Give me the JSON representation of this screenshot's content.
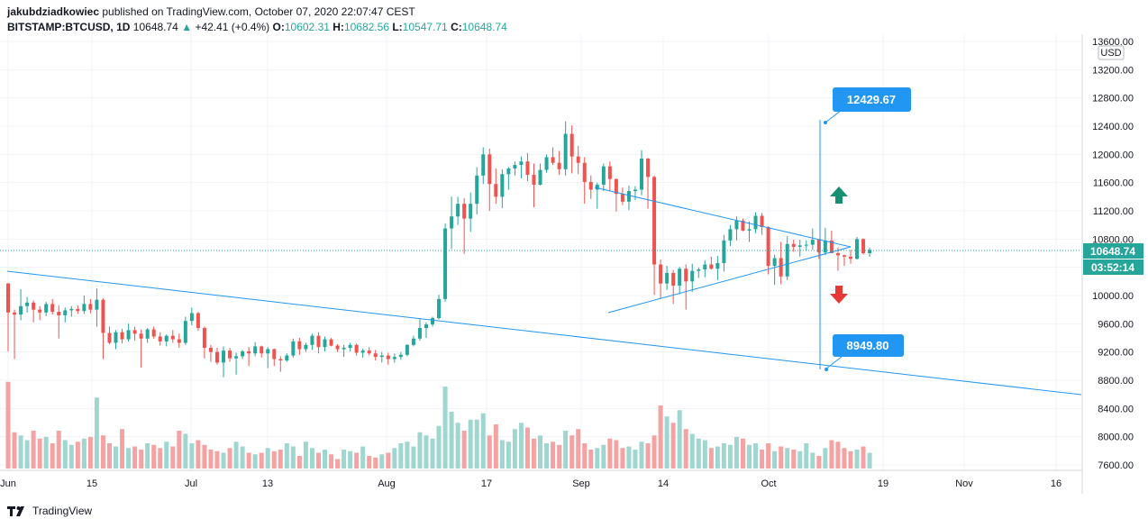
{
  "header": {
    "author": "jakubdziadkowiec",
    "published_text": "published on TradingView.com, October 07, 2020 22:07:47 CEST",
    "symbol": "BITSTAMP:BTCUSD, 1D",
    "last": "10648.74",
    "change_arrow": "▲",
    "change": "+42.41 (+0.4%)",
    "o_label": "O:",
    "o": "10602.31",
    "h_label": "H:",
    "h": "10682.56",
    "l_label": "L:",
    "l": "10547.71",
    "c_label": "C:",
    "c": "10648.74"
  },
  "footer": {
    "brand": "TradingView",
    "logo_icon": "tradingview-logo-icon"
  },
  "colors": {
    "up": "#26a69a",
    "down": "#ef5350",
    "vol_up": "#9fd6d0",
    "vol_down": "#f5a3a2",
    "line": "#2196f3",
    "grid": "#f0f3fa",
    "price_label": "#2196f3"
  },
  "chart_data": {
    "type": "candlestick",
    "y_axis": {
      "unit": "USD",
      "ticks": [
        "13600.00",
        "13200.00",
        "12800.00",
        "12400.00",
        "12000.00",
        "11600.00",
        "11200.00",
        "10800.00",
        "10400.00",
        "10000.00",
        "9600.00",
        "9200.00",
        "8800.00",
        "8400.00",
        "8000.00",
        "7600.00"
      ],
      "range": [
        7600,
        13600
      ]
    },
    "x_axis": {
      "ticks": [
        "Jun",
        "15",
        "Jul",
        "13",
        "Aug",
        "17",
        "Sep",
        "14",
        "Oct",
        "19",
        "Nov",
        "16"
      ]
    },
    "last_price_label": "10648.74",
    "countdown_label": "03:52:14",
    "targets": [
      {
        "label": "12429.67",
        "value": 12429.67
      },
      {
        "label": "8949.80",
        "value": 8949.8
      }
    ],
    "candles": [
      [
        10170,
        10180,
        9210,
        9760
      ],
      [
        9760,
        9800,
        9100,
        9730
      ],
      [
        9730,
        10090,
        9650,
        9850
      ],
      [
        9850,
        9980,
        9760,
        9900
      ],
      [
        9900,
        9930,
        9620,
        9800
      ],
      [
        9800,
        9850,
        9650,
        9760
      ],
      [
        9760,
        9910,
        9710,
        9880
      ],
      [
        9880,
        9950,
        9730,
        9770
      ],
      [
        9770,
        9860,
        9390,
        9720
      ],
      [
        9720,
        9830,
        9620,
        9790
      ],
      [
        9790,
        9850,
        9700,
        9810
      ],
      [
        9810,
        9860,
        9740,
        9780
      ],
      [
        9780,
        10000,
        9740,
        9880
      ],
      [
        9880,
        9950,
        9750,
        9800
      ],
      [
        9800,
        10100,
        9560,
        9940
      ],
      [
        9940,
        9960,
        9100,
        9470
      ],
      [
        9470,
        9560,
        9310,
        9330
      ],
      [
        9330,
        9510,
        9240,
        9480
      ],
      [
        9480,
        9530,
        9320,
        9380
      ],
      [
        9380,
        9600,
        9350,
        9510
      ],
      [
        9510,
        9560,
        9360,
        9460
      ],
      [
        9460,
        9520,
        8980,
        9390
      ],
      [
        9390,
        9540,
        9330,
        9520
      ],
      [
        9520,
        9560,
        9390,
        9420
      ],
      [
        9420,
        9480,
        9290,
        9350
      ],
      [
        9350,
        9450,
        9280,
        9430
      ],
      [
        9430,
        9510,
        9330,
        9380
      ],
      [
        9380,
        9460,
        9260,
        9330
      ],
      [
        9330,
        9700,
        9300,
        9640
      ],
      [
        9640,
        9830,
        9580,
        9750
      ],
      [
        9750,
        9770,
        9500,
        9540
      ],
      [
        9540,
        9560,
        9110,
        9260
      ],
      [
        9260,
        9300,
        9060,
        9200
      ],
      [
        9200,
        9260,
        9020,
        9050
      ],
      [
        9050,
        9280,
        8840,
        9220
      ],
      [
        9220,
        9260,
        9060,
        9110
      ],
      [
        9110,
        9190,
        8880,
        9140
      ],
      [
        9140,
        9230,
        9100,
        9210
      ],
      [
        9210,
        9270,
        9000,
        9180
      ],
      [
        9180,
        9340,
        9140,
        9280
      ],
      [
        9280,
        9290,
        9120,
        9180
      ],
      [
        9180,
        9270,
        8970,
        9240
      ],
      [
        9240,
        9250,
        9000,
        9100
      ],
      [
        9100,
        9140,
        8920,
        9080
      ],
      [
        9080,
        9180,
        9060,
        9150
      ],
      [
        9150,
        9390,
        9120,
        9350
      ],
      [
        9350,
        9400,
        9160,
        9240
      ],
      [
        9240,
        9330,
        9200,
        9300
      ],
      [
        9300,
        9460,
        9230,
        9430
      ],
      [
        9430,
        9480,
        9180,
        9270
      ],
      [
        9270,
        9420,
        9210,
        9380
      ],
      [
        9380,
        9400,
        9280,
        9290
      ],
      [
        9290,
        9310,
        9200,
        9240
      ],
      [
        9240,
        9300,
        9130,
        9260
      ],
      [
        9260,
        9330,
        9210,
        9300
      ],
      [
        9300,
        9320,
        9150,
        9190
      ],
      [
        9190,
        9250,
        9120,
        9220
      ],
      [
        9220,
        9270,
        9150,
        9180
      ],
      [
        9180,
        9230,
        9080,
        9130
      ],
      [
        9130,
        9200,
        9050,
        9150
      ],
      [
        9150,
        9190,
        9020,
        9100
      ],
      [
        9100,
        9180,
        9050,
        9130
      ],
      [
        9130,
        9200,
        9090,
        9160
      ],
      [
        9160,
        9310,
        9140,
        9300
      ],
      [
        9300,
        9430,
        9280,
        9390
      ],
      [
        9390,
        9680,
        9360,
        9540
      ],
      [
        9540,
        9620,
        9400,
        9590
      ],
      [
        9590,
        9700,
        9560,
        9680
      ],
      [
        9680,
        10010,
        9660,
        9950
      ],
      [
        9950,
        11020,
        9910,
        10950
      ],
      [
        10950,
        11400,
        10660,
        11120
      ],
      [
        11120,
        11400,
        11000,
        11300
      ],
      [
        11300,
        11380,
        10590,
        11090
      ],
      [
        11090,
        11460,
        10900,
        11300
      ],
      [
        11300,
        11820,
        11150,
        11700
      ],
      [
        11700,
        12100,
        11580,
        12000
      ],
      [
        12000,
        12080,
        11200,
        11580
      ],
      [
        11580,
        11800,
        11300,
        11400
      ],
      [
        11400,
        11790,
        11240,
        11720
      ],
      [
        11720,
        11820,
        11500,
        11800
      ],
      [
        11800,
        11900,
        11700,
        11850
      ],
      [
        11850,
        11970,
        11660,
        11900
      ],
      [
        11900,
        12020,
        11620,
        11710
      ],
      [
        11710,
        11870,
        11250,
        11570
      ],
      [
        11570,
        11870,
        11560,
        11780
      ],
      [
        11780,
        12000,
        11740,
        11960
      ],
      [
        11960,
        12100,
        11850,
        11880
      ],
      [
        11880,
        12050,
        11710,
        11790
      ],
      [
        11790,
        12470,
        11700,
        12290
      ],
      [
        12290,
        12410,
        11730,
        11970
      ],
      [
        11970,
        12120,
        11720,
        11880
      ],
      [
        11880,
        11960,
        11300,
        11610
      ],
      [
        11610,
        11700,
        11370,
        11500
      ],
      [
        11500,
        11600,
        11230,
        11570
      ],
      [
        11570,
        11870,
        11480,
        11830
      ],
      [
        11830,
        11900,
        11480,
        11650
      ],
      [
        11650,
        11660,
        11190,
        11440
      ],
      [
        11440,
        11530,
        11280,
        11330
      ],
      [
        11330,
        11560,
        11210,
        11480
      ],
      [
        11480,
        11550,
        11350,
        11500
      ],
      [
        11500,
        12060,
        11420,
        11940
      ],
      [
        11940,
        11950,
        11230,
        11680
      ],
      [
        11680,
        11700,
        10010,
        10440
      ],
      [
        10440,
        10510,
        9960,
        10170
      ],
      [
        10170,
        10420,
        10080,
        10320
      ],
      [
        10320,
        10360,
        9880,
        10140
      ],
      [
        10140,
        10410,
        10020,
        10380
      ],
      [
        10380,
        10440,
        9800,
        10200
      ],
      [
        10200,
        10450,
        10050,
        10350
      ],
      [
        10350,
        10400,
        10250,
        10370
      ],
      [
        10370,
        10500,
        10260,
        10440
      ],
      [
        10440,
        10550,
        10370,
        10380
      ],
      [
        10380,
        10560,
        10220,
        10460
      ],
      [
        10460,
        10860,
        10340,
        10780
      ],
      [
        10780,
        11000,
        10700,
        10940
      ],
      [
        10940,
        11120,
        10780,
        11060
      ],
      [
        11060,
        11090,
        10910,
        10920
      ],
      [
        10920,
        11050,
        10760,
        10940
      ],
      [
        10940,
        11180,
        10880,
        11130
      ],
      [
        11130,
        11170,
        10860,
        10970
      ],
      [
        10970,
        10980,
        10300,
        10420
      ],
      [
        10420,
        10580,
        10150,
        10530
      ],
      [
        10530,
        10760,
        10160,
        10270
      ],
      [
        10270,
        10840,
        10220,
        10730
      ],
      [
        10730,
        10790,
        10620,
        10690
      ],
      [
        10690,
        10790,
        10550,
        10710
      ],
      [
        10710,
        10780,
        10630,
        10720
      ],
      [
        10720,
        10950,
        10650,
        10790
      ],
      [
        10790,
        10800,
        10520,
        10610
      ],
      [
        10610,
        10960,
        10570,
        10780
      ],
      [
        10780,
        10920,
        10630,
        10600
      ],
      [
        10600,
        10680,
        10350,
        10570
      ],
      [
        10570,
        10580,
        10420,
        10550
      ],
      [
        10550,
        10650,
        10450,
        10520
      ],
      [
        10520,
        10830,
        10510,
        10800
      ],
      [
        10800,
        10810,
        10580,
        10600
      ],
      [
        10600,
        10680,
        10550,
        10649
      ]
    ],
    "volumes": [
      5.5,
      2.3,
      2.1,
      1.8,
      2.4,
      1.9,
      2.0,
      1.6,
      2.4,
      1.8,
      1.5,
      1.7,
      1.9,
      2.0,
      4.5,
      2.1,
      1.6,
      1.4,
      2.5,
      1.3,
      1.4,
      1.2,
      1.6,
      1.5,
      1.3,
      1.7,
      1.4,
      2.4,
      2.2,
      1.6,
      1.8,
      1.5,
      1.2,
      1.1,
      1.0,
      1.3,
      1.7,
      1.4,
      1.0,
      0.9,
      1.0,
      1.3,
      1.1,
      1.2,
      1.6,
      1.4,
      0.8,
      1.7,
      1.3,
      1.0,
      1.2,
      0.9,
      0.6,
      1.2,
      1.1,
      1.0,
      1.4,
      0.8,
      0.7,
      0.9,
      1.0,
      1.3,
      1.6,
      1.7,
      1.4,
      2.3,
      2.1,
      1.9,
      2.7,
      5.2,
      3.6,
      2.9,
      2.4,
      3.1,
      3.1,
      3.5,
      2.1,
      2.8,
      1.8,
      1.7,
      2.5,
      2.9,
      2.6,
      1.9,
      2.1,
      1.6,
      1.7,
      1.5,
      2.4,
      2.1,
      2.5,
      1.6,
      1.2,
      1.3,
      1.5,
      1.9,
      1.8,
      1.3,
      1.4,
      1.2,
      1.7,
      1.6,
      2.1,
      4.0,
      3.3,
      2.9,
      3.7,
      2.5,
      2.2,
      1.9,
      1.8,
      1.3,
      1.4,
      1.6,
      1.5,
      2.0,
      1.9,
      1.5,
      1.6,
      1.2,
      1.6,
      1.1,
      1.4,
      1.3,
      1.2,
      1.1,
      1.6,
      1.0,
      0.8,
      1.3,
      1.8,
      1.7,
      1.3,
      1.1,
      1.2,
      1.4
    ]
  }
}
